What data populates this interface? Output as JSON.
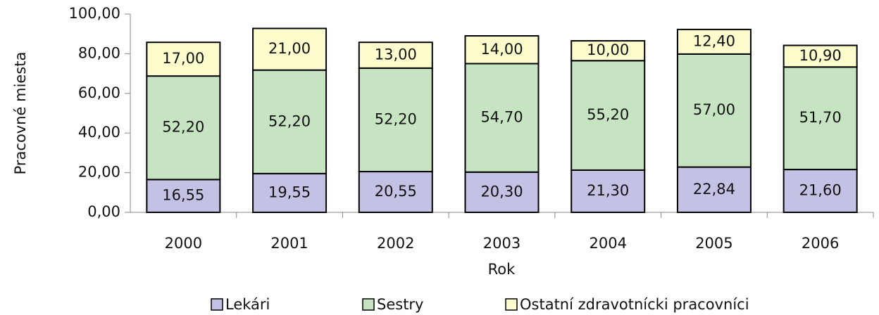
{
  "chart_data": {
    "type": "stacked_bar",
    "x_label": "Rok",
    "y_label": "Pracovné miesta",
    "categories": [
      "2000",
      "2001",
      "2002",
      "2003",
      "2004",
      "2005",
      "2006"
    ],
    "series": [
      {
        "name": "Lekári",
        "color": "#c4c2e4",
        "values": [
          16.55,
          19.55,
          20.55,
          20.3,
          21.3,
          22.84,
          21.6
        ],
        "value_labels": [
          "16,55",
          "19,55",
          "20,55",
          "20,30",
          "21,30",
          "22,84",
          "21,60"
        ]
      },
      {
        "name": "Sestry",
        "color": "#c6e4c2",
        "values": [
          52.2,
          52.2,
          52.2,
          54.7,
          55.2,
          57.0,
          51.7
        ],
        "value_labels": [
          "52,20",
          "52,20",
          "52,20",
          "54,70",
          "55,20",
          "57,00",
          "51,70"
        ]
      },
      {
        "name": "Ostatní zdravotnícki pracovníci",
        "color": "#fdfccc",
        "values": [
          17.0,
          21.0,
          13.0,
          14.0,
          10.0,
          12.4,
          10.9
        ],
        "value_labels": [
          "17,00",
          "21,00",
          "13,00",
          "14,00",
          "10,00",
          "12,40",
          "10,90"
        ]
      }
    ],
    "ylim": [
      0,
      100
    ],
    "yticks": [
      {
        "value": 0,
        "label": "0,00"
      },
      {
        "value": 20,
        "label": "20,00"
      },
      {
        "value": 40,
        "label": "40,00"
      },
      {
        "value": 60,
        "label": "60,00"
      },
      {
        "value": 80,
        "label": "80,00"
      },
      {
        "value": 100,
        "label": "100,00"
      }
    ],
    "legend": "bottom"
  }
}
